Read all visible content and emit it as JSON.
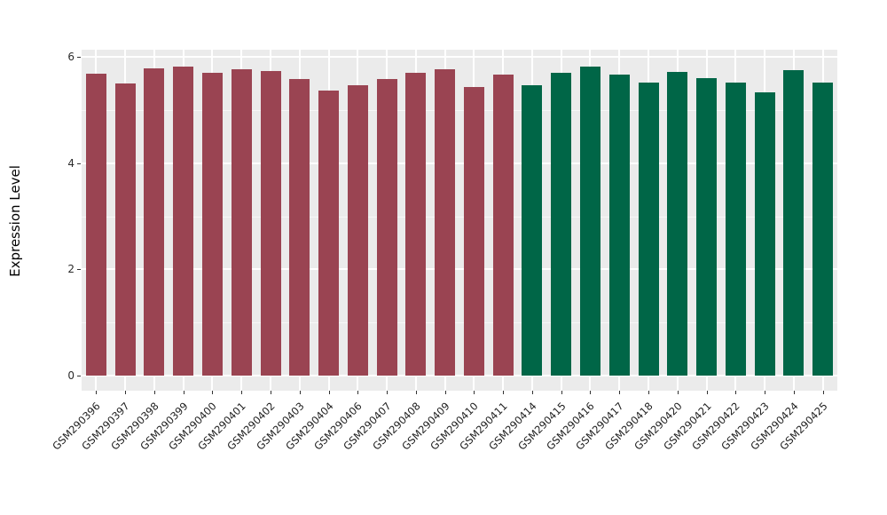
{
  "chart_data": {
    "type": "bar",
    "title": "",
    "xlabel": "",
    "ylabel": "Expression Level",
    "ylim": [
      -0.3,
      6.13
    ],
    "y_major_ticks": [
      0,
      2,
      4,
      6
    ],
    "y_minor_gridlines": [
      1,
      3,
      5
    ],
    "grid": true,
    "legend": false,
    "panel_background_color": "#EBEBEB",
    "figure_background_color": "#FFFFFF",
    "categories": [
      "GSM290396",
      "GSM290397",
      "GSM290398",
      "GSM290399",
      "GSM290400",
      "GSM290401",
      "GSM290402",
      "GSM290403",
      "GSM290404",
      "GSM290406",
      "GSM290407",
      "GSM290408",
      "GSM290409",
      "GSM290410",
      "GSM290411",
      "GSM290414",
      "GSM290415",
      "GSM290416",
      "GSM290417",
      "GSM290418",
      "GSM290420",
      "GSM290421",
      "GSM290422",
      "GSM290423",
      "GSM290424",
      "GSM290425"
    ],
    "values": [
      5.68,
      5.5,
      5.79,
      5.81,
      5.7,
      5.76,
      5.74,
      5.58,
      5.36,
      5.46,
      5.58,
      5.7,
      5.76,
      5.43,
      5.66,
      5.47,
      5.7,
      5.82,
      5.67,
      5.51,
      5.72,
      5.6,
      5.52,
      5.34,
      5.75,
      5.52
    ],
    "bar_groups": [
      {
        "color": "#9A4452",
        "count": 15
      },
      {
        "color": "#006647",
        "count": 11
      }
    ]
  }
}
